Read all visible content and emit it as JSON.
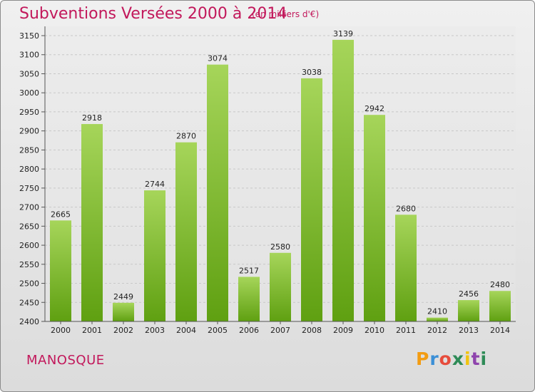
{
  "header": {
    "title": "Subventions Versées 2000 à 2014",
    "subtitle": "(en milliers d'€)"
  },
  "footer": {
    "city": "MANOSQUE",
    "logo_letters": [
      "P",
      "r",
      "o",
      "x",
      "i",
      "t",
      "i"
    ]
  },
  "colors": {
    "title": "#c2185b",
    "bar_light": "#a6d55a",
    "bar_dark": "#5fa011",
    "grid": "#c8c8c8",
    "logo": [
      "#f39c12",
      "#3b8fd6",
      "#e74c3c",
      "#2e8b57",
      "#f1c40f",
      "#8e44ad",
      "#2e8b57"
    ]
  },
  "chart_data": {
    "type": "bar",
    "title": "Subventions Versées 2000 à 2014",
    "subtitle": "(en milliers d'€)",
    "categories": [
      "2000",
      "2001",
      "2002",
      "2003",
      "2004",
      "2005",
      "2006",
      "2007",
      "2008",
      "2009",
      "2010",
      "2011",
      "2012",
      "2013",
      "2014"
    ],
    "values": [
      2665,
      2918,
      2449,
      2744,
      2870,
      3074,
      2517,
      2580,
      3038,
      3139,
      2942,
      2680,
      2410,
      2456,
      2480
    ],
    "ylim": [
      2400,
      3150
    ],
    "yticks": [
      2400,
      2450,
      2500,
      2550,
      2600,
      2650,
      2700,
      2750,
      2800,
      2850,
      2900,
      2950,
      3000,
      3050,
      3100,
      3150
    ],
    "grid": true,
    "xlabel": "",
    "ylabel": ""
  }
}
